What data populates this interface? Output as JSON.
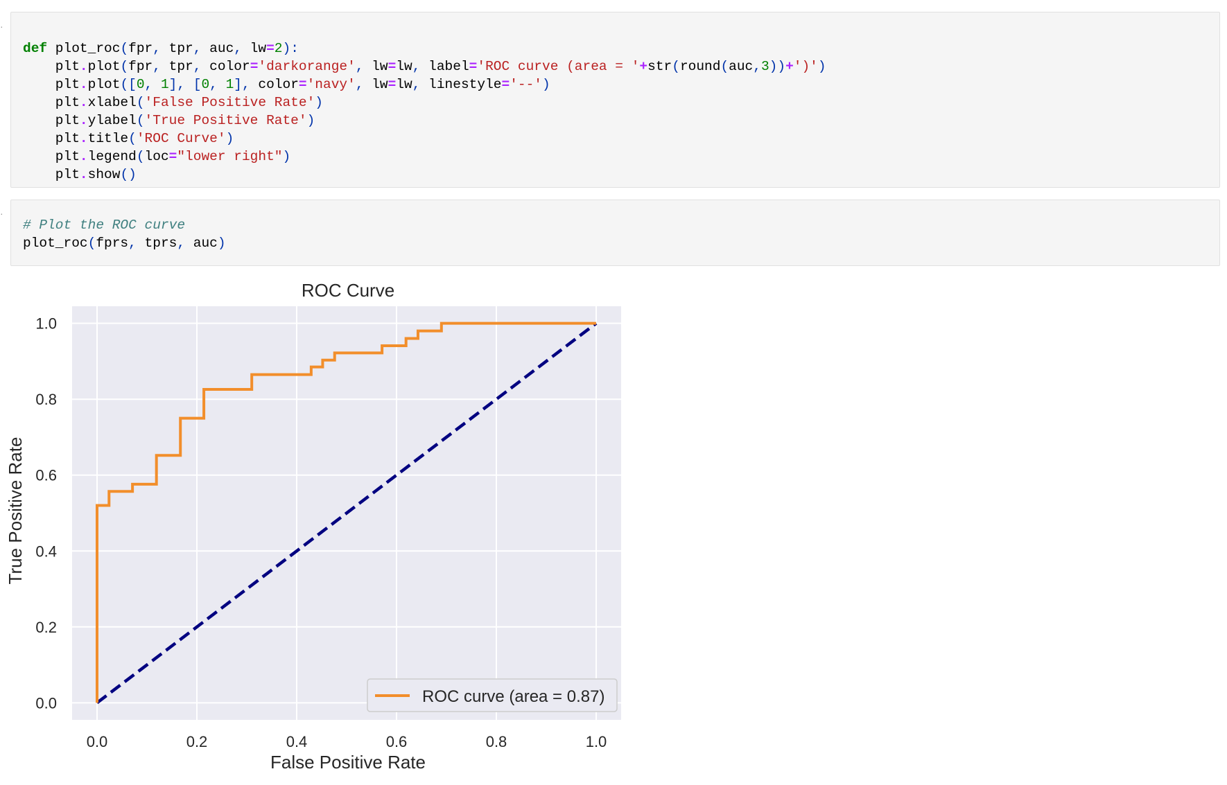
{
  "cell1": {
    "code": [
      [
        {
          "t": "kw",
          "v": "def"
        },
        {
          "t": "tx",
          "v": " plot_roc"
        },
        {
          "t": "pun",
          "v": "("
        },
        {
          "t": "tx",
          "v": "fpr"
        },
        {
          "t": "pun",
          "v": ","
        },
        {
          "t": "tx",
          "v": " tpr"
        },
        {
          "t": "pun",
          "v": ","
        },
        {
          "t": "tx",
          "v": " auc"
        },
        {
          "t": "pun",
          "v": ","
        },
        {
          "t": "tx",
          "v": " lw"
        },
        {
          "t": "op",
          "v": "="
        },
        {
          "t": "num",
          "v": "2"
        },
        {
          "t": "pun",
          "v": "):"
        }
      ],
      [
        {
          "t": "tx",
          "v": "    plt"
        },
        {
          "t": "op",
          "v": "."
        },
        {
          "t": "tx",
          "v": "plot"
        },
        {
          "t": "pun",
          "v": "("
        },
        {
          "t": "tx",
          "v": "fpr"
        },
        {
          "t": "pun",
          "v": ","
        },
        {
          "t": "tx",
          "v": " tpr"
        },
        {
          "t": "pun",
          "v": ","
        },
        {
          "t": "tx",
          "v": " color"
        },
        {
          "t": "op",
          "v": "="
        },
        {
          "t": "str",
          "v": "'darkorange'"
        },
        {
          "t": "pun",
          "v": ","
        },
        {
          "t": "tx",
          "v": " lw"
        },
        {
          "t": "op",
          "v": "="
        },
        {
          "t": "tx",
          "v": "lw"
        },
        {
          "t": "pun",
          "v": ","
        },
        {
          "t": "tx",
          "v": " label"
        },
        {
          "t": "op",
          "v": "="
        },
        {
          "t": "str",
          "v": "'ROC curve (area = '"
        },
        {
          "t": "op",
          "v": "+"
        },
        {
          "t": "tx",
          "v": "str"
        },
        {
          "t": "pun",
          "v": "("
        },
        {
          "t": "tx",
          "v": "round"
        },
        {
          "t": "pun",
          "v": "("
        },
        {
          "t": "tx",
          "v": "auc"
        },
        {
          "t": "pun",
          "v": ","
        },
        {
          "t": "num",
          "v": "3"
        },
        {
          "t": "pun",
          "v": "))"
        },
        {
          "t": "op",
          "v": "+"
        },
        {
          "t": "str",
          "v": "')'"
        },
        {
          "t": "pun",
          "v": ")"
        }
      ],
      [
        {
          "t": "tx",
          "v": "    plt"
        },
        {
          "t": "op",
          "v": "."
        },
        {
          "t": "tx",
          "v": "plot"
        },
        {
          "t": "pun",
          "v": "(["
        },
        {
          "t": "num",
          "v": "0"
        },
        {
          "t": "pun",
          "v": ","
        },
        {
          "t": "tx",
          "v": " "
        },
        {
          "t": "num",
          "v": "1"
        },
        {
          "t": "pun",
          "v": "],"
        },
        {
          "t": "tx",
          "v": " "
        },
        {
          "t": "pun",
          "v": "["
        },
        {
          "t": "num",
          "v": "0"
        },
        {
          "t": "pun",
          "v": ","
        },
        {
          "t": "tx",
          "v": " "
        },
        {
          "t": "num",
          "v": "1"
        },
        {
          "t": "pun",
          "v": "],"
        },
        {
          "t": "tx",
          "v": " color"
        },
        {
          "t": "op",
          "v": "="
        },
        {
          "t": "str",
          "v": "'navy'"
        },
        {
          "t": "pun",
          "v": ","
        },
        {
          "t": "tx",
          "v": " lw"
        },
        {
          "t": "op",
          "v": "="
        },
        {
          "t": "tx",
          "v": "lw"
        },
        {
          "t": "pun",
          "v": ","
        },
        {
          "t": "tx",
          "v": " linestyle"
        },
        {
          "t": "op",
          "v": "="
        },
        {
          "t": "str",
          "v": "'--'"
        },
        {
          "t": "pun",
          "v": ")"
        }
      ],
      [
        {
          "t": "tx",
          "v": "    plt"
        },
        {
          "t": "op",
          "v": "."
        },
        {
          "t": "tx",
          "v": "xlabel"
        },
        {
          "t": "pun",
          "v": "("
        },
        {
          "t": "str",
          "v": "'False Positive Rate'"
        },
        {
          "t": "pun",
          "v": ")"
        }
      ],
      [
        {
          "t": "tx",
          "v": "    plt"
        },
        {
          "t": "op",
          "v": "."
        },
        {
          "t": "tx",
          "v": "ylabel"
        },
        {
          "t": "pun",
          "v": "("
        },
        {
          "t": "str",
          "v": "'True Positive Rate'"
        },
        {
          "t": "pun",
          "v": ")"
        }
      ],
      [
        {
          "t": "tx",
          "v": "    plt"
        },
        {
          "t": "op",
          "v": "."
        },
        {
          "t": "tx",
          "v": "title"
        },
        {
          "t": "pun",
          "v": "("
        },
        {
          "t": "str",
          "v": "'ROC Curve'"
        },
        {
          "t": "pun",
          "v": ")"
        }
      ],
      [
        {
          "t": "tx",
          "v": "    plt"
        },
        {
          "t": "op",
          "v": "."
        },
        {
          "t": "tx",
          "v": "legend"
        },
        {
          "t": "pun",
          "v": "("
        },
        {
          "t": "tx",
          "v": "loc"
        },
        {
          "t": "op",
          "v": "="
        },
        {
          "t": "str",
          "v": "\"lower right\""
        },
        {
          "t": "pun",
          "v": ")"
        }
      ],
      [
        {
          "t": "tx",
          "v": "    plt"
        },
        {
          "t": "op",
          "v": "."
        },
        {
          "t": "tx",
          "v": "show"
        },
        {
          "t": "pun",
          "v": "()"
        }
      ]
    ]
  },
  "cell2": {
    "code": [
      [
        {
          "t": "cmt",
          "v": "# Plot the ROC curve"
        }
      ],
      [
        {
          "t": "tx",
          "v": "plot_roc"
        },
        {
          "t": "pun",
          "v": "("
        },
        {
          "t": "tx",
          "v": "fprs"
        },
        {
          "t": "pun",
          "v": ","
        },
        {
          "t": "tx",
          "v": " tprs"
        },
        {
          "t": "pun",
          "v": ","
        },
        {
          "t": "tx",
          "v": " auc"
        },
        {
          "t": "pun",
          "v": ")"
        }
      ]
    ]
  },
  "chart_data": {
    "type": "line",
    "title": "ROC Curve",
    "xlabel": "False Positive Rate",
    "ylabel": "True Positive Rate",
    "xlim": [
      -0.05,
      1.05
    ],
    "ylim": [
      -0.045,
      1.045
    ],
    "xticks": [
      "0.0",
      "0.2",
      "0.4",
      "0.6",
      "0.8",
      "1.0"
    ],
    "yticks": [
      "0.0",
      "0.2",
      "0.4",
      "0.6",
      "0.8",
      "1.0"
    ],
    "grid": true,
    "legend_position": "lower right",
    "colors": {
      "roc": "#f28e2b",
      "diagonal": "#000080",
      "plot_bg": "#eaeaf2",
      "grid": "#ffffff"
    },
    "series": [
      {
        "name": "ROC curve (area = 0.87)",
        "style": "solid",
        "x": [
          0.0,
          0.0,
          0.024,
          0.024,
          0.071,
          0.071,
          0.119,
          0.119,
          0.167,
          0.167,
          0.214,
          0.214,
          0.31,
          0.31,
          0.429,
          0.429,
          0.452,
          0.452,
          0.476,
          0.476,
          0.571,
          0.571,
          0.619,
          0.619,
          0.643,
          0.643,
          0.69,
          0.69,
          1.0
        ],
        "y": [
          0.0,
          0.52,
          0.52,
          0.557,
          0.557,
          0.576,
          0.576,
          0.652,
          0.652,
          0.75,
          0.75,
          0.826,
          0.826,
          0.865,
          0.865,
          0.885,
          0.885,
          0.903,
          0.903,
          0.922,
          0.922,
          0.941,
          0.941,
          0.96,
          0.96,
          0.98,
          0.98,
          1.0,
          1.0
        ]
      },
      {
        "style": "dashed",
        "x": [
          0,
          1
        ],
        "y": [
          0,
          1
        ]
      }
    ]
  }
}
